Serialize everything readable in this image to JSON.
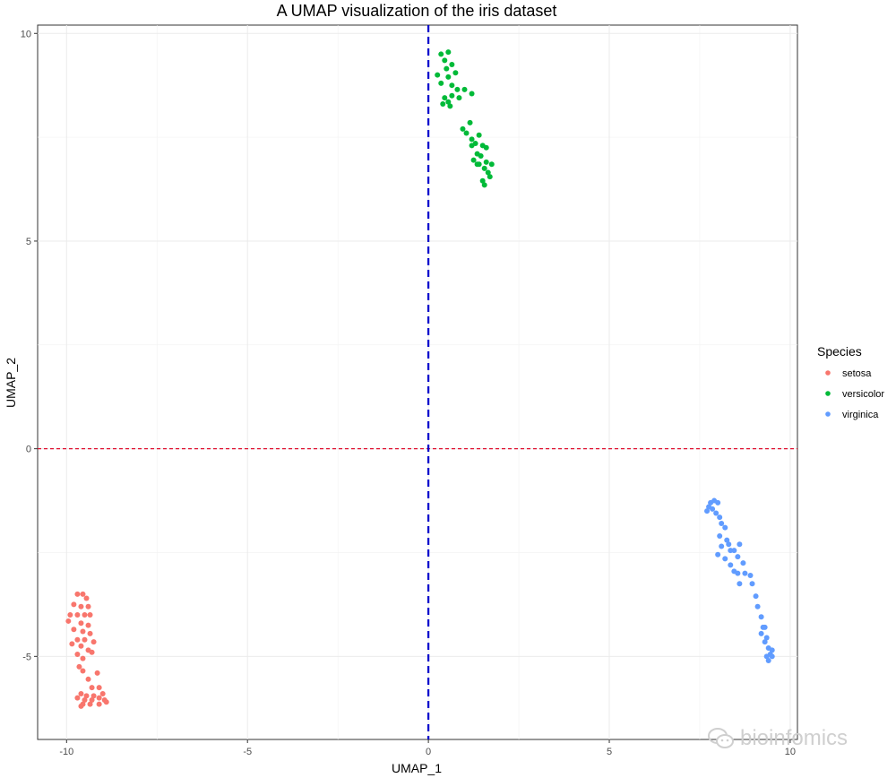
{
  "chart_data": {
    "type": "scatter",
    "title": "A UMAP visualization of the iris dataset",
    "xlabel": "UMAP_1",
    "ylabel": "UMAP_2",
    "xlim": [
      -10.8,
      10.2
    ],
    "ylim": [
      -7.0,
      10.2
    ],
    "xticks": [
      -10,
      -5,
      0,
      5,
      10
    ],
    "yticks": [
      -5,
      0,
      5,
      10
    ],
    "grid": true,
    "vline": {
      "x": 0,
      "color": "#0000cc",
      "style": "dashed"
    },
    "hline": {
      "y": 0,
      "color": "#e0102f",
      "style": "dashed"
    },
    "legend": {
      "title": "Species",
      "position": "right"
    },
    "series": [
      {
        "name": "setosa",
        "color": "#f8766d",
        "points": [
          [
            -9.7,
            -3.5
          ],
          [
            -9.55,
            -3.5
          ],
          [
            -9.45,
            -3.6
          ],
          [
            -9.8,
            -3.75
          ],
          [
            -9.6,
            -3.8
          ],
          [
            -9.4,
            -3.8
          ],
          [
            -9.9,
            -4.0
          ],
          [
            -9.7,
            -4.0
          ],
          [
            -9.5,
            -4.0
          ],
          [
            -9.35,
            -4.0
          ],
          [
            -9.95,
            -4.15
          ],
          [
            -9.6,
            -4.2
          ],
          [
            -9.4,
            -4.25
          ],
          [
            -9.8,
            -4.35
          ],
          [
            -9.55,
            -4.4
          ],
          [
            -9.35,
            -4.45
          ],
          [
            -9.7,
            -4.6
          ],
          [
            -9.5,
            -4.6
          ],
          [
            -9.25,
            -4.65
          ],
          [
            -9.85,
            -4.7
          ],
          [
            -9.6,
            -4.75
          ],
          [
            -9.4,
            -4.85
          ],
          [
            -9.3,
            -4.9
          ],
          [
            -9.7,
            -4.95
          ],
          [
            -9.55,
            -5.05
          ],
          [
            -9.65,
            -5.25
          ],
          [
            -9.55,
            -5.35
          ],
          [
            -9.15,
            -5.4
          ],
          [
            -9.4,
            -5.55
          ],
          [
            -9.3,
            -5.75
          ],
          [
            -9.1,
            -5.75
          ],
          [
            -9.6,
            -5.9
          ],
          [
            -9.45,
            -5.95
          ],
          [
            -9.25,
            -5.95
          ],
          [
            -9.0,
            -5.9
          ],
          [
            -9.7,
            -6.0
          ],
          [
            -9.5,
            -6.05
          ],
          [
            -9.3,
            -6.05
          ],
          [
            -9.1,
            -6.0
          ],
          [
            -8.95,
            -6.05
          ],
          [
            -9.55,
            -6.15
          ],
          [
            -9.35,
            -6.15
          ],
          [
            -9.1,
            -6.15
          ],
          [
            -9.6,
            -6.2
          ],
          [
            -8.9,
            -6.1
          ]
        ]
      },
      {
        "name": "versicolor",
        "color": "#00ba38",
        "points": [
          [
            0.35,
            9.5
          ],
          [
            0.55,
            9.55
          ],
          [
            0.45,
            9.35
          ],
          [
            0.65,
            9.25
          ],
          [
            0.5,
            9.15
          ],
          [
            0.75,
            9.05
          ],
          [
            0.25,
            9.0
          ],
          [
            0.55,
            8.95
          ],
          [
            0.35,
            8.8
          ],
          [
            0.65,
            8.75
          ],
          [
            0.8,
            8.65
          ],
          [
            1.0,
            8.65
          ],
          [
            1.2,
            8.55
          ],
          [
            0.45,
            8.45
          ],
          [
            0.65,
            8.5
          ],
          [
            0.85,
            8.45
          ],
          [
            0.55,
            8.35
          ],
          [
            0.4,
            8.3
          ],
          [
            0.6,
            8.25
          ],
          [
            1.15,
            7.85
          ],
          [
            0.95,
            7.7
          ],
          [
            1.05,
            7.6
          ],
          [
            1.4,
            7.55
          ],
          [
            1.2,
            7.45
          ],
          [
            1.3,
            7.35
          ],
          [
            1.5,
            7.3
          ],
          [
            1.6,
            7.25
          ],
          [
            1.35,
            7.1
          ],
          [
            1.45,
            7.05
          ],
          [
            1.25,
            6.95
          ],
          [
            1.4,
            6.85
          ],
          [
            1.6,
            6.9
          ],
          [
            1.75,
            6.85
          ],
          [
            1.55,
            6.75
          ],
          [
            1.65,
            6.65
          ],
          [
            1.7,
            6.55
          ],
          [
            1.5,
            6.45
          ],
          [
            1.55,
            6.35
          ],
          [
            1.35,
            6.85
          ],
          [
            1.2,
            7.3
          ]
        ]
      },
      {
        "name": "virginica",
        "color": "#619cff",
        "points": [
          [
            7.8,
            -1.3
          ],
          [
            7.9,
            -1.25
          ],
          [
            8.0,
            -1.3
          ],
          [
            7.75,
            -1.4
          ],
          [
            7.85,
            -1.45
          ],
          [
            7.7,
            -1.5
          ],
          [
            7.95,
            -1.55
          ],
          [
            8.05,
            -1.65
          ],
          [
            8.1,
            -1.8
          ],
          [
            8.2,
            -1.9
          ],
          [
            8.05,
            -2.1
          ],
          [
            8.25,
            -2.2
          ],
          [
            8.1,
            -2.35
          ],
          [
            8.35,
            -2.45
          ],
          [
            8.45,
            -2.45
          ],
          [
            8.6,
            -2.3
          ],
          [
            8.0,
            -2.55
          ],
          [
            8.2,
            -2.65
          ],
          [
            8.55,
            -2.6
          ],
          [
            8.7,
            -2.75
          ],
          [
            8.35,
            -2.8
          ],
          [
            8.45,
            -2.95
          ],
          [
            8.55,
            -3.0
          ],
          [
            8.75,
            -3.0
          ],
          [
            8.9,
            -3.05
          ],
          [
            8.6,
            -3.25
          ],
          [
            8.95,
            -3.25
          ],
          [
            9.05,
            -3.55
          ],
          [
            9.1,
            -3.8
          ],
          [
            9.2,
            -4.05
          ],
          [
            9.3,
            -4.3
          ],
          [
            9.2,
            -4.45
          ],
          [
            9.35,
            -4.55
          ],
          [
            9.3,
            -4.65
          ],
          [
            9.4,
            -4.8
          ],
          [
            9.5,
            -4.85
          ],
          [
            9.45,
            -4.95
          ],
          [
            9.35,
            -5.0
          ],
          [
            9.5,
            -5.0
          ],
          [
            9.4,
            -5.1
          ],
          [
            9.25,
            -4.3
          ],
          [
            8.3,
            -2.3
          ]
        ]
      }
    ]
  },
  "watermark": {
    "text": "bioinfomics"
  }
}
